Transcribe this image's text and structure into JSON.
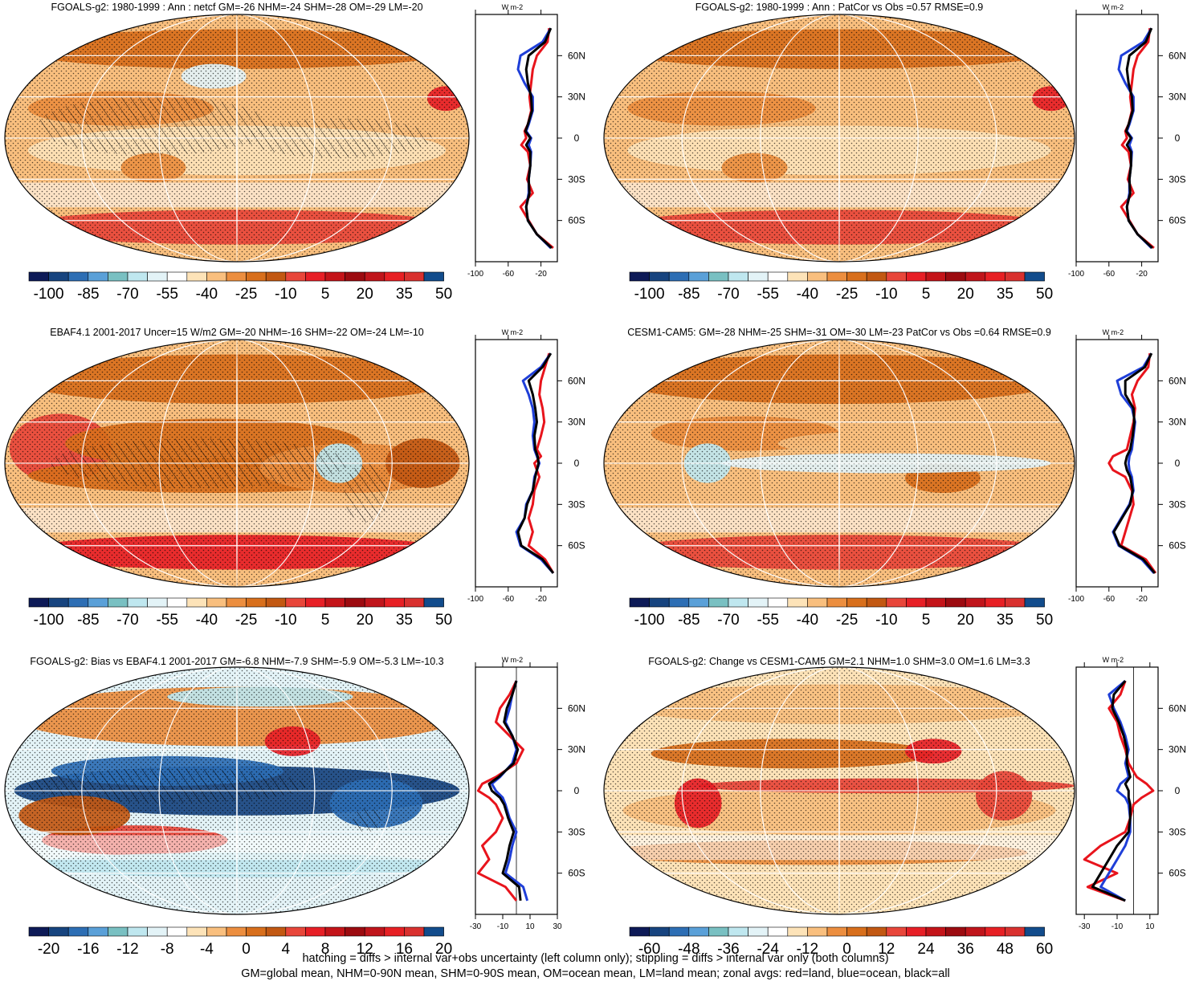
{
  "figure": {
    "footer_line1": "hatching = diffs > internal var+obs uncertainty (left column only); stippling = diffs > internal var only (both columns)",
    "footer_line2": "GM=global mean, NHM=0-90N mean, SHM=0-90S mean, OM=ocean mean, LM=land mean; zonal avgs: red=land, blue=ocean, black=all"
  },
  "colors": {
    "land_line": "#e8141c",
    "ocean_line": "#1f3fd8",
    "all_line": "#000000",
    "palette": [
      "#0d1a57",
      "#17447f",
      "#2d6eb4",
      "#5aa0d8",
      "#79c0c2",
      "#bfe7ef",
      "#e3f3f7",
      "#ffffff",
      "#fde3b8",
      "#f9bf7e",
      "#ec8e3f",
      "#d86f1c",
      "#c25812",
      "#e8463a",
      "#e71f26",
      "#c41419",
      "#9c0b10",
      "#c0151b",
      "#e72024",
      "#d9312f",
      "#124c8c"
    ]
  },
  "chart_data": [
    {
      "type": "heatmap",
      "title": "FGOALS-g2: 1980-1999 : Ann : netcf GM=-26 NHM=-24 SHM=-28 OM=-29 LM=-20",
      "colorbar_labels": [
        "-100",
        "-85",
        "-70",
        "-55",
        "-40",
        "-25",
        "-10",
        "5",
        "20",
        "35",
        "50"
      ],
      "profile": {
        "unit": "W m-2",
        "lat_labels": [
          "60N",
          "30N",
          "0",
          "30S",
          "60S"
        ],
        "x_ticks": [
          "-100",
          "-60",
          "-20"
        ],
        "xlim": [
          -100,
          0
        ],
        "lat": [
          80,
          70,
          60,
          50,
          40,
          30,
          20,
          10,
          5,
          0,
          -5,
          -10,
          -20,
          -30,
          -40,
          -50,
          -60,
          -70,
          -80
        ],
        "series": [
          {
            "name": "land",
            "values": [
              -10,
              -12,
              -25,
              -30,
              -32,
              -34,
              -32,
              -36,
              -40,
              -38,
              -44,
              -36,
              -33,
              -37,
              -30,
              -45,
              -35,
              -25,
              -5
            ]
          },
          {
            "name": "ocean",
            "values": [
              -8,
              -18,
              -45,
              -48,
              -40,
              -30,
              -30,
              -35,
              -38,
              -32,
              -35,
              -32,
              -33,
              -35,
              -35,
              -38,
              -36,
              -25,
              -8
            ]
          },
          {
            "name": "all",
            "values": [
              -8,
              -15,
              -35,
              -38,
              -36,
              -32,
              -31,
              -36,
              -39,
              -33,
              -38,
              -33,
              -33,
              -35,
              -34,
              -38,
              -36,
              -25,
              -7
            ]
          }
        ]
      }
    },
    {
      "type": "heatmap",
      "title": "FGOALS-g2: 1980-1999 : Ann : PatCor vs Obs =0.57 RMSE=0.9",
      "colorbar_labels": [
        "-100",
        "-85",
        "-70",
        "-55",
        "-40",
        "-25",
        "-10",
        "5",
        "20",
        "35",
        "50"
      ],
      "profile": {
        "unit": "W m-2",
        "lat_labels": [
          "60N",
          "30N",
          "0",
          "30S",
          "60S"
        ],
        "x_ticks": [
          "-100",
          "-60",
          "-20"
        ],
        "xlim": [
          -100,
          0
        ],
        "lat": [
          80,
          70,
          60,
          50,
          40,
          30,
          20,
          10,
          5,
          0,
          -5,
          -10,
          -20,
          -30,
          -40,
          -50,
          -60,
          -70,
          -80
        ],
        "series": [
          {
            "name": "land",
            "values": [
              -10,
              -12,
              -25,
              -30,
              -32,
              -34,
              -32,
              -36,
              -40,
              -38,
              -44,
              -36,
              -33,
              -37,
              -30,
              -45,
              -35,
              -25,
              -5
            ]
          },
          {
            "name": "ocean",
            "values": [
              -8,
              -18,
              -45,
              -48,
              -40,
              -30,
              -30,
              -35,
              -38,
              -32,
              -35,
              -32,
              -33,
              -35,
              -35,
              -38,
              -36,
              -25,
              -8
            ]
          },
          {
            "name": "all",
            "values": [
              -8,
              -15,
              -35,
              -38,
              -36,
              -32,
              -31,
              -36,
              -39,
              -33,
              -38,
              -33,
              -33,
              -35,
              -34,
              -38,
              -36,
              -25,
              -7
            ]
          }
        ]
      }
    },
    {
      "type": "heatmap",
      "title": "EBAF4.1 2001-2017 Uncer=15 W/m2 GM=-20 NHM=-16 SHM=-22 OM=-24 LM=-10",
      "colorbar_labels": [
        "-100",
        "-85",
        "-70",
        "-55",
        "-40",
        "-25",
        "-10",
        "5",
        "20",
        "35",
        "50"
      ],
      "profile": {
        "unit": "W m-2",
        "lat_labels": [
          "60N",
          "30N",
          "0",
          "30S",
          "60S"
        ],
        "x_ticks": [
          "-100",
          "-60",
          "-20"
        ],
        "xlim": [
          -100,
          0
        ],
        "lat": [
          80,
          70,
          60,
          50,
          40,
          30,
          20,
          10,
          5,
          0,
          -5,
          -10,
          -20,
          -30,
          -40,
          -50,
          -60,
          -70,
          -80
        ],
        "series": [
          {
            "name": "land",
            "values": [
              -10,
              -15,
              -20,
              -22,
              -18,
              -16,
              -20,
              -25,
              -20,
              -28,
              -25,
              -22,
              -28,
              -30,
              -35,
              -30,
              -35,
              -15,
              -5
            ]
          },
          {
            "name": "ocean",
            "values": [
              -8,
              -20,
              -42,
              -35,
              -30,
              -28,
              -30,
              -28,
              -25,
              -22,
              -25,
              -28,
              -30,
              -38,
              -40,
              -50,
              -45,
              -20,
              -5
            ]
          },
          {
            "name": "all",
            "values": [
              -8,
              -18,
              -35,
              -30,
              -27,
              -25,
              -28,
              -27,
              -24,
              -23,
              -25,
              -27,
              -30,
              -37,
              -40,
              -48,
              -44,
              -18,
              -5
            ]
          }
        ]
      }
    },
    {
      "type": "heatmap",
      "title": "CESM1-CAM5: GM=-28 NHM=-25 SHM=-31 OM=-30 LM=-23 PatCor vs Obs =0.64 RMSE=0.9",
      "colorbar_labels": [
        "-100",
        "-85",
        "-70",
        "-55",
        "-40",
        "-25",
        "-10",
        "5",
        "20",
        "35",
        "50"
      ],
      "profile": {
        "unit": "W m-2",
        "lat_labels": [
          "60N",
          "30N",
          "0",
          "30S",
          "60S"
        ],
        "x_ticks": [
          "-100",
          "-60",
          "-20"
        ],
        "xlim": [
          -100,
          0
        ],
        "lat": [
          80,
          70,
          60,
          50,
          40,
          30,
          20,
          10,
          5,
          0,
          -5,
          -10,
          -20,
          -30,
          -40,
          -50,
          -60,
          -70,
          -80
        ],
        "series": [
          {
            "name": "land",
            "values": [
              -10,
              -12,
              -25,
              -32,
              -28,
              -30,
              -34,
              -38,
              -55,
              -60,
              -55,
              -40,
              -32,
              -30,
              -35,
              -40,
              -45,
              -15,
              -3
            ]
          },
          {
            "name": "ocean",
            "values": [
              -8,
              -18,
              -50,
              -45,
              -32,
              -28,
              -30,
              -32,
              -35,
              -36,
              -35,
              -32,
              -30,
              -35,
              -45,
              -55,
              -48,
              -20,
              -5
            ]
          },
          {
            "name": "all",
            "values": [
              -8,
              -16,
              -40,
              -40,
              -30,
              -29,
              -31,
              -34,
              -38,
              -40,
              -38,
              -34,
              -31,
              -34,
              -44,
              -54,
              -47,
              -18,
              -4
            ]
          }
        ]
      }
    },
    {
      "type": "heatmap",
      "title": "FGOALS-g2: Bias vs EBAF4.1 2001-2017 GM=-6.8 NHM=-7.9 SHM=-5.9 OM=-5.3 LM=-10.3",
      "colorbar_labels": [
        "-20",
        "-16",
        "-12",
        "-8",
        "-4",
        "0",
        "4",
        "8",
        "12",
        "16",
        "20"
      ],
      "profile": {
        "unit": "W m-2",
        "lat_labels": [
          "60N",
          "30N",
          "0",
          "30S",
          "60S"
        ],
        "x_ticks": [
          "-30",
          "-10",
          "10",
          "30"
        ],
        "xlim": [
          -30,
          30
        ],
        "lat": [
          80,
          70,
          60,
          50,
          40,
          30,
          20,
          10,
          5,
          0,
          -5,
          -10,
          -20,
          -30,
          -40,
          -50,
          -60,
          -70,
          -80
        ],
        "series": [
          {
            "name": "land",
            "values": [
              0,
              -5,
              -12,
              -15,
              -5,
              5,
              0,
              -15,
              -25,
              -28,
              -20,
              -15,
              -10,
              -15,
              -25,
              -20,
              -28,
              -8,
              0
            ]
          },
          {
            "name": "ocean",
            "values": [
              0,
              -3,
              -5,
              -8,
              -3,
              0,
              -3,
              -12,
              -18,
              -15,
              -10,
              -8,
              -5,
              0,
              -3,
              -5,
              -8,
              5,
              8
            ]
          },
          {
            "name": "all",
            "values": [
              0,
              -3,
              -7,
              -9,
              -3,
              1,
              -2,
              -13,
              -20,
              -18,
              -12,
              -9,
              -6,
              -2,
              -5,
              -7,
              -10,
              2,
              3
            ]
          }
        ]
      }
    },
    {
      "type": "heatmap",
      "title": "FGOALS-g2: Change vs CESM1-CAM5 GM=2.1 NHM=1.0 SHM=3.0 OM=1.6 LM=3.3",
      "colorbar_labels": [
        "-60",
        "-48",
        "-36",
        "-24",
        "-12",
        "0",
        "12",
        "24",
        "36",
        "48",
        "60"
      ],
      "profile": {
        "unit": "W m-2",
        "lat_labels": [
          "60N",
          "30N",
          "0",
          "30S",
          "60S"
        ],
        "x_ticks": [
          "-30",
          "-10",
          "10"
        ],
        "xlim": [
          -35,
          15
        ],
        "lat": [
          80,
          70,
          60,
          50,
          40,
          30,
          20,
          10,
          5,
          0,
          -5,
          -10,
          -20,
          -30,
          -40,
          -50,
          -60,
          -70,
          -80
        ],
        "series": [
          {
            "name": "land",
            "values": [
              -5,
              -8,
              -15,
              -10,
              -8,
              -5,
              -3,
              2,
              8,
              12,
              5,
              0,
              -2,
              -5,
              -20,
              -30,
              -10,
              -28,
              -5
            ]
          },
          {
            "name": "ocean",
            "values": [
              -5,
              -15,
              -12,
              -8,
              -5,
              -3,
              -5,
              -3,
              -8,
              -10,
              -5,
              -3,
              -2,
              -2,
              -5,
              -10,
              -15,
              -20,
              -5
            ]
          },
          {
            "name": "all",
            "values": [
              -5,
              -12,
              -13,
              -9,
              -6,
              -4,
              -4,
              -2,
              -5,
              -3,
              -3,
              -2,
              -2,
              -3,
              -10,
              -15,
              -20,
              -25,
              -5
            ]
          }
        ]
      }
    }
  ]
}
